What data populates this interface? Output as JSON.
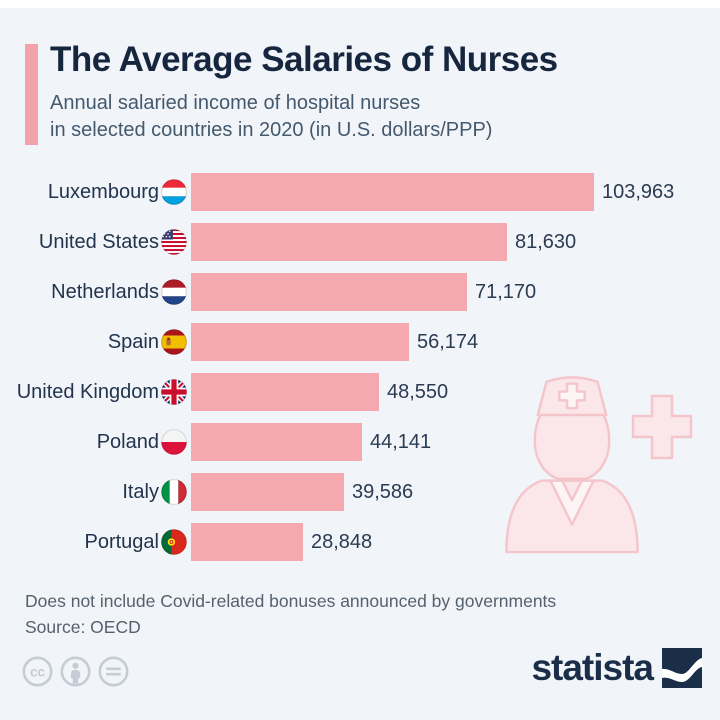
{
  "header": {
    "title": "The Average Salaries of Nurses",
    "subtitle_line1": "Annual salaried income of hospital nurses",
    "subtitle_line2": "in selected countries in 2020 (in U.S. dollars/PPP)"
  },
  "chart_data": {
    "type": "bar",
    "orientation": "horizontal",
    "title": "The Average Salaries of Nurses",
    "subtitle": "Annual salaried income of hospital nurses in selected countries in 2020 (in U.S. dollars/PPP)",
    "categories": [
      "Luxembourg",
      "United States",
      "Netherlands",
      "Spain",
      "United Kingdom",
      "Poland",
      "Italy",
      "Portugal"
    ],
    "values": [
      103963,
      81630,
      71170,
      56174,
      48550,
      44141,
      39586,
      28848
    ],
    "value_labels": [
      "103,963",
      "81,630",
      "71,170",
      "56,174",
      "48,550",
      "44,141",
      "39,586",
      "28,848"
    ],
    "flag_icons": [
      "flag-luxembourg-icon",
      "flag-united-states-icon",
      "flag-netherlands-icon",
      "flag-spain-icon",
      "flag-united-kingdom-icon",
      "flag-poland-icon",
      "flag-italy-icon",
      "flag-portugal-icon"
    ],
    "xlim": [
      0,
      103963
    ],
    "grid": false,
    "legend": false,
    "bar_color": "#f5a9ae"
  },
  "footer": {
    "note": "Does not include Covid-related bonuses announced by governments",
    "source": "Source: OECD",
    "brand": "statista",
    "license_icons": [
      "cc-icon",
      "attribution-person-icon",
      "equals-icon"
    ]
  },
  "colors": {
    "background": "#f1f4f8",
    "accent_pink": "#f2a2a8",
    "bar_pink": "#f5a9ae",
    "title_navy": "#16263e",
    "subtitle_slate": "#44596e",
    "note_gray": "#55616e",
    "brand_navy": "#1a2e49",
    "illustration_fill": "#fbe7e9",
    "illustration_stroke": "#f4c6cb",
    "license_gray": "#c6ccd5"
  }
}
